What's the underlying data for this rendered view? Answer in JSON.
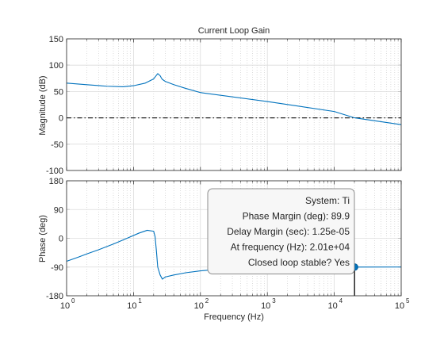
{
  "chart_data": [
    {
      "type": "line",
      "title": "Current Loop Gain",
      "xlabel": "",
      "ylabel": "Magnitude (dB)",
      "xscale": "log",
      "xlim": [
        1,
        100000
      ],
      "ylim": [
        -100,
        150
      ],
      "yticks": [
        150,
        100,
        50,
        0,
        -50,
        -100
      ],
      "ytick_labels": [
        "150",
        "100",
        "50",
        "0",
        "-50",
        "-100"
      ],
      "grid": true,
      "series": [
        {
          "x": [
            1,
            2,
            4,
            7,
            10,
            15,
            20,
            23,
            25,
            26,
            27,
            30,
            40,
            60,
            100,
            1000,
            10000,
            20100,
            100000
          ],
          "values": [
            66,
            63,
            60,
            59,
            61,
            66,
            74,
            84,
            80,
            76,
            73,
            69,
            63,
            56,
            48,
            31,
            12,
            0,
            -13
          ]
        }
      ],
      "reference_lines": [
        {
          "axis": "y",
          "value": 0,
          "style": "dash-dot"
        }
      ]
    },
    {
      "type": "line",
      "xlabel": "Frequency  (Hz)",
      "ylabel": "Phase (deg)",
      "xscale": "log",
      "xlim": [
        1,
        100000
      ],
      "ylim": [
        -180,
        180
      ],
      "xticks": [
        1,
        10,
        100,
        1000,
        10000,
        100000
      ],
      "xtick_labels": [
        "10",
        "10",
        "10",
        "10",
        "10",
        "10"
      ],
      "xtick_exponents": [
        "0",
        "1",
        "2",
        "3",
        "4",
        "5"
      ],
      "yticks": [
        180,
        90,
        0,
        -90,
        -180
      ],
      "ytick_labels": [
        "180",
        "90",
        "0",
        "-90",
        "-180"
      ],
      "grid": true,
      "series": [
        {
          "x": [
            1,
            1.5,
            2,
            3,
            5,
            8,
            12,
            16,
            20,
            21,
            22,
            23,
            25,
            27,
            30,
            40,
            60,
            100,
            200,
            500,
            1000,
            3000,
            10000,
            20100,
            100000
          ],
          "values": [
            -72,
            -59,
            -49,
            -36,
            -18,
            0,
            16,
            25,
            22,
            5,
            -40,
            -90,
            -115,
            -128,
            -121,
            -115,
            -108,
            -102,
            -97,
            -93,
            -92,
            -91,
            -90.5,
            -90.1,
            -90
          ]
        }
      ],
      "marker": {
        "x": 20100,
        "y": -90.1
      },
      "annotation_lines": [
        "System: Ti",
        "Phase Margin (deg): 89.9",
        "Delay Margin (sec): 1.25e-05",
        "At frequency (Hz): 2.01e+04",
        "Closed loop stable? Yes"
      ]
    }
  ],
  "colors": {
    "line": "#0072bd",
    "grid_major": "#dcdcdc",
    "grid_minor": "#c4c4c4",
    "axis": "#262626",
    "tooltip_bg": "#f7f7f7",
    "tooltip_border": "#8c8c8c",
    "ref_line": "#262626"
  }
}
